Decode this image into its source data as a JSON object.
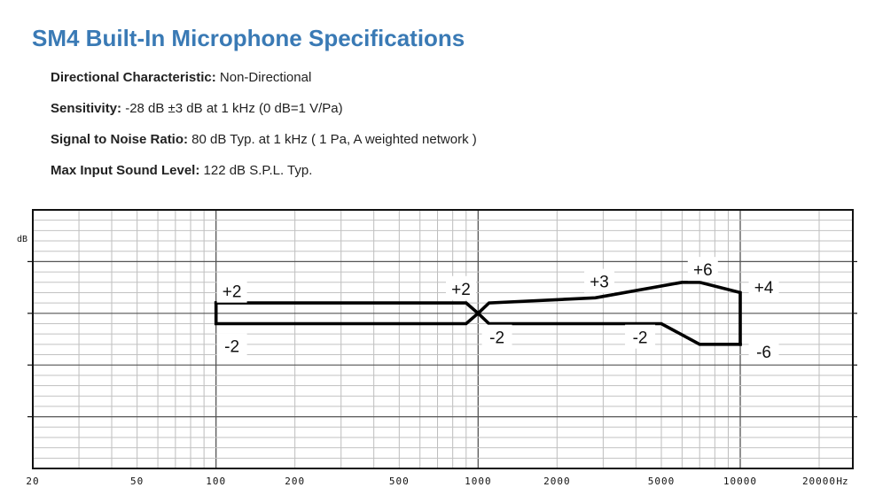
{
  "title": "SM4 Built-In Microphone Specifications",
  "specs": [
    {
      "label": "Directional Characteristic:",
      "value": " Non-Directional"
    },
    {
      "label": "Sensitivity:",
      "value": " -28 dB ±3 dB at 1 kHz (0 dB=1 V/Pa)"
    },
    {
      "label": "Signal to Noise Ratio:",
      "value": " 80 dB Typ. at 1 kHz ( 1 Pa, A weighted network )"
    },
    {
      "label": "Max Input Sound Level:",
      "value": " 122 dB S.P.L. Typ."
    }
  ],
  "chart_data": {
    "type": "line",
    "xscale": "log",
    "xlim": [
      20,
      20000
    ],
    "ylim": [
      -30,
      20
    ],
    "grid": true,
    "ylabel": "dB",
    "xunit": "Hz",
    "x_tick_labels": [
      {
        "x": 20,
        "label": "20"
      },
      {
        "x": 50,
        "label": "50"
      },
      {
        "x": 100,
        "label": "100"
      },
      {
        "x": 200,
        "label": "200"
      },
      {
        "x": 500,
        "label": "500"
      },
      {
        "x": 1000,
        "label": "1000"
      },
      {
        "x": 2000,
        "label": "2000"
      },
      {
        "x": 5000,
        "label": "5000"
      },
      {
        "x": 10000,
        "label": "10000"
      },
      {
        "x": 20000,
        "label": "20000"
      }
    ],
    "series": [
      {
        "values": [
          [
            100,
            2
          ],
          [
            900,
            2
          ],
          [
            1000,
            0
          ],
          [
            1100,
            2
          ],
          [
            2800,
            3
          ],
          [
            6000,
            6
          ],
          [
            7000,
            6
          ],
          [
            10000,
            4
          ],
          [
            10000,
            -6
          ]
        ]
      },
      {
        "values": [
          [
            100,
            2
          ],
          [
            100,
            -2
          ],
          [
            900,
            -2
          ],
          [
            1000,
            0
          ],
          [
            1100,
            -2
          ],
          [
            5000,
            -2
          ],
          [
            7000,
            -6
          ],
          [
            10000,
            -6
          ]
        ]
      }
    ],
    "annotations": [
      {
        "text": "+2",
        "x": 115,
        "y": 4.3
      },
      {
        "text": "-2",
        "x": 115,
        "y": -6.3
      },
      {
        "text": "+2",
        "x": 860,
        "y": 4.8
      },
      {
        "text": "-2",
        "x": 1180,
        "y": -4.6
      },
      {
        "text": "+3",
        "x": 2900,
        "y": 6.2
      },
      {
        "text": "-2",
        "x": 4150,
        "y": -4.6
      },
      {
        "text": "+6",
        "x": 7200,
        "y": 8.5
      },
      {
        "text": "+4",
        "x": 12300,
        "y": 5.1
      },
      {
        "text": "-6",
        "x": 12300,
        "y": -7.4
      }
    ]
  }
}
